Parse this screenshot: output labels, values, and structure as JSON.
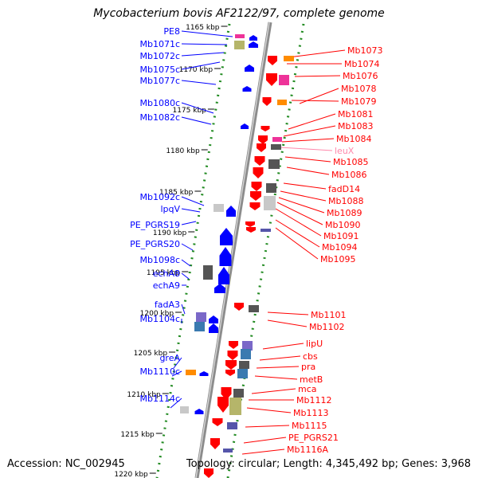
{
  "title": "Mycobacterium bovis AF2122/97, complete genome",
  "accession": "Accession: NC_002945",
  "topology": "Topology: circular; Length: 4,345,492 bp; Genes: 3,968",
  "colors": {
    "backbone": "#8c8c8c",
    "forward_strand": "#0000ff",
    "reverse_strand": "#ff0000",
    "trna_label": "#ff88aa",
    "ruler_dots": "#228b22"
  },
  "ticks": [
    "1165 kbp",
    "1170 kbp",
    "1175 kbp",
    "1180 kbp",
    "1185 kbp",
    "1190 kbp",
    "1195 kbp",
    "1200 kbp",
    "1205 kbp",
    "1210 kbp",
    "1215 kbp",
    "1220 kbp"
  ],
  "left_labels": [
    "PE8",
    "Mb1071c",
    "Mb1072c",
    "Mb1075c",
    "Mb1077c",
    "Mb1080c",
    "Mb1082c",
    "Mb1092c",
    "lpqV",
    "PE_PGRS19",
    "PE_PGRS20",
    "Mb1098c",
    "echA8",
    "echA9",
    "fadA3",
    "Mb1104c",
    "greA",
    "Mb1110c",
    "Mb1114c"
  ],
  "right_labels": [
    "Mb1073",
    "Mb1074",
    "Mb1076",
    "Mb1078",
    "Mb1079",
    "Mb1081",
    "Mb1083",
    "Mb1084",
    "leuX",
    "Mb1085",
    "Mb1086",
    "fadD14",
    "Mb1088",
    "Mb1089",
    "Mb1090",
    "Mb1091",
    "Mb1094",
    "Mb1095",
    "Mb1101",
    "Mb1102",
    "lipU",
    "cbs",
    "pra",
    "metB",
    "mca",
    "Mb1112",
    "Mb1113",
    "Mb1115",
    "PE_PGRS21",
    "Mb1116A"
  ]
}
